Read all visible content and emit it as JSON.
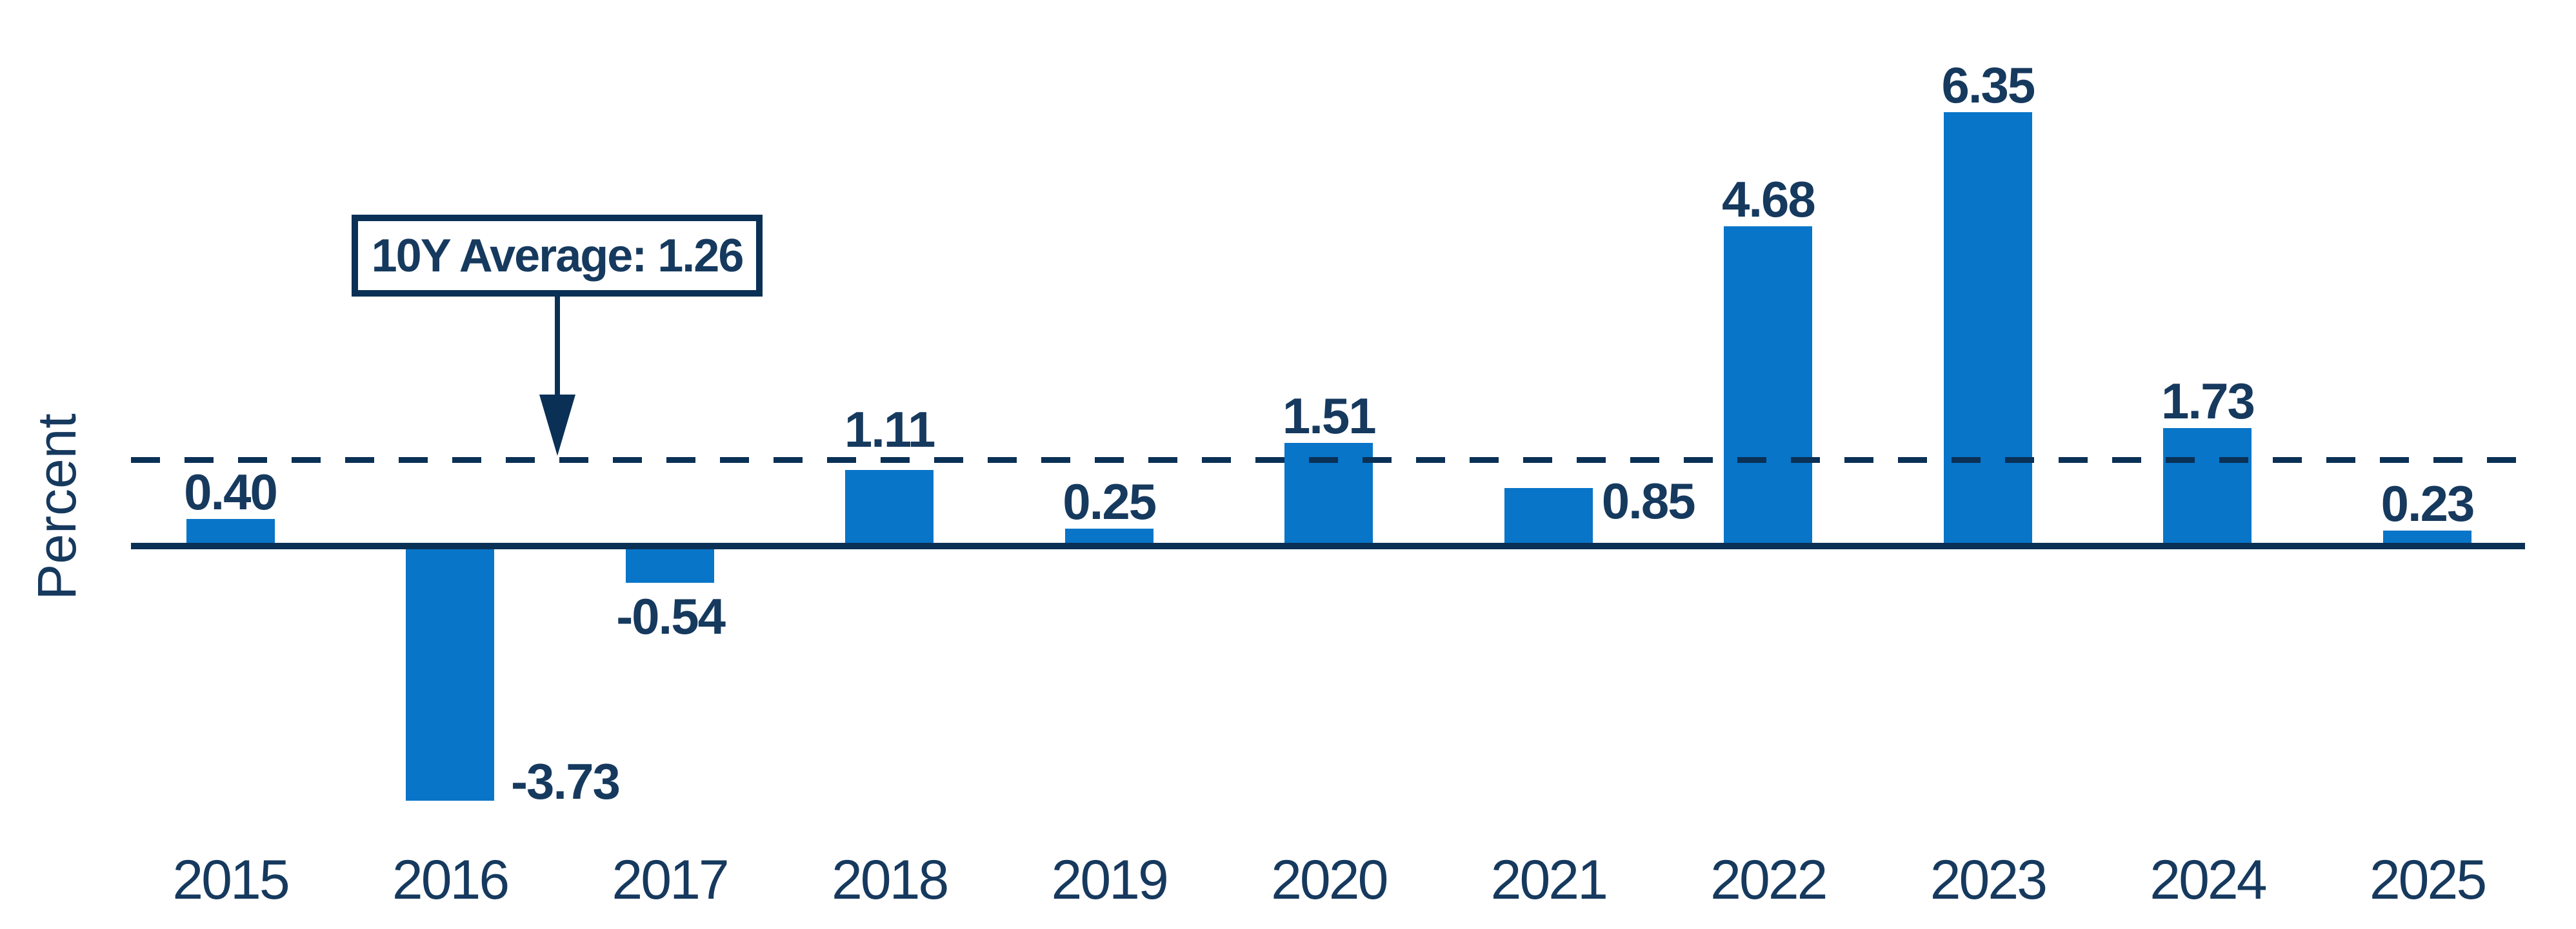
{
  "chart_data": {
    "type": "bar",
    "title": "",
    "xlabel": "",
    "ylabel": "Percent",
    "categories": [
      "2015",
      "2016",
      "2017",
      "2018",
      "2019",
      "2020",
      "2021",
      "2022",
      "2023",
      "2024",
      "2025"
    ],
    "values": [
      0.4,
      -3.73,
      -0.54,
      1.11,
      0.25,
      1.51,
      0.85,
      4.68,
      6.35,
      1.73,
      0.23
    ],
    "value_labels": [
      "0.40",
      "-3.73",
      "-0.54",
      "1.11",
      "0.25",
      "1.51",
      "0.85",
      "4.68",
      "6.35",
      "1.73",
      "0.23"
    ],
    "label_placements": [
      "above",
      "right-bottom",
      "below",
      "above-high",
      "above",
      "above",
      "right-top",
      "above",
      "above",
      "above",
      "above"
    ],
    "average_line": {
      "value": 1.26,
      "label": "10Y Average: 1.26",
      "style": "dashed"
    },
    "ylim": [
      -4.2,
      6.9
    ],
    "grid": false,
    "legend": null,
    "bar_color": "#0875C8",
    "axis_color": "#0A3055",
    "text_color": "#16395E"
  }
}
